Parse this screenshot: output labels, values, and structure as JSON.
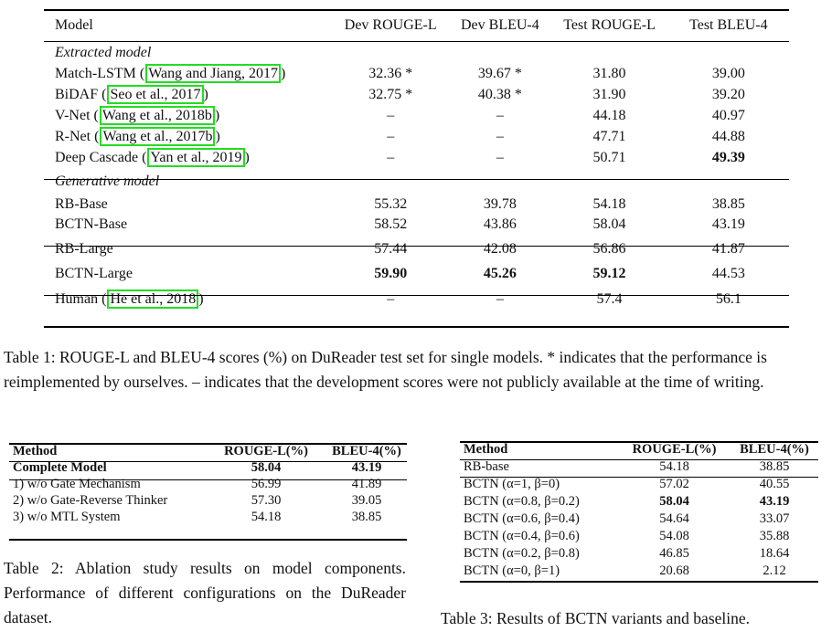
{
  "table1": {
    "headers": [
      "Model",
      "Dev ROUGE-L",
      "Dev BLEU-4",
      "Test ROUGE-L",
      "Test BLEU-4"
    ],
    "section_extracted": "Extracted model",
    "extracted_rows": [
      {
        "model": "Match-LSTM (",
        "cite": "Wang and Jiang, 2017",
        "close": ")",
        "dev_rouge": "32.36 *",
        "dev_bleu": "39.67 *",
        "test_rouge": "31.80",
        "test_bleu": "39.00"
      },
      {
        "model": "BiDAF (",
        "cite": "Seo et al., 2017",
        "close": ")",
        "dev_rouge": "32.75 *",
        "dev_bleu": "40.38 *",
        "test_rouge": "31.90",
        "test_bleu": "39.20"
      },
      {
        "model": "V-Net (",
        "cite": "Wang et al., 2018b",
        "close": ")",
        "dev_rouge": "–",
        "dev_bleu": "–",
        "test_rouge": "44.18",
        "test_bleu": "40.97"
      },
      {
        "model": "R-Net (",
        "cite": "Wang et al., 2017b",
        "close": ")",
        "dev_rouge": "–",
        "dev_bleu": "–",
        "test_rouge": "47.71",
        "test_bleu": "44.88"
      },
      {
        "model": "Deep Cascade (",
        "cite": "Yan et al., 2019",
        "close": ")",
        "dev_rouge": "–",
        "dev_bleu": "–",
        "test_rouge": "50.71",
        "test_bleu": "49.39"
      }
    ],
    "section_generative": "Generative model",
    "generative_rows": [
      {
        "model": "RB-Base",
        "dev_rouge": "55.32",
        "dev_bleu": "39.78",
        "test_rouge": "54.18",
        "test_bleu": "38.85"
      },
      {
        "model": "BCTN-Base",
        "dev_rouge": "58.52",
        "dev_bleu": "43.86",
        "test_rouge": "58.04",
        "test_bleu": "43.19"
      }
    ],
    "large_rows": [
      {
        "model": "RB-Large",
        "dev_rouge": "57.44",
        "dev_bleu": "42.08",
        "test_rouge": "56.86",
        "test_bleu": "41.87"
      },
      {
        "model": "BCTN-Large",
        "dev_rouge": "59.90",
        "dev_bleu": "45.26",
        "test_rouge": "59.12",
        "test_bleu": "44.53"
      }
    ],
    "human_row": {
      "model": "Human (",
      "cite": "He et al., 2018",
      "close": ")",
      "dev_rouge": "–",
      "dev_bleu": "–",
      "test_rouge": "57.4",
      "test_bleu": "56.1"
    },
    "caption": "Table 1: ROUGE-L and BLEU-4 scores (%) on DuReader test set for single models. * indicates that the performance is reimplemented by ourselves. – indicates that the development scores were not publicly available at the time of writing."
  },
  "table2": {
    "headers": [
      "Method",
      "ROUGE-L(%)",
      "BLEU-4(%)"
    ],
    "complete": {
      "method": "Complete Model",
      "rouge": "58.04",
      "bleu": "43.19"
    },
    "rows": [
      {
        "method": "1) w/o Gate Mechanism",
        "rouge": "56.99",
        "bleu": "41.89"
      },
      {
        "method": "2) w/o Gate-Reverse Thinker",
        "rouge": "57.30",
        "bleu": "39.05"
      },
      {
        "method": "3) w/o MTL System",
        "rouge": "54.18",
        "bleu": "38.85"
      }
    ],
    "caption": "Table 2: Ablation study results on model components. Performance of different configurations on the DuReader dataset."
  },
  "table3": {
    "headers": [
      "Method",
      "ROUGE-L(%)",
      "BLEU-4(%)"
    ],
    "baseline": {
      "method": "RB-base",
      "rouge": "54.18",
      "bleu": "38.85"
    },
    "rows": [
      {
        "method": "BCTN (α=1, β=0)",
        "rouge": "57.02",
        "bleu": "40.55"
      },
      {
        "method": "BCTN (α=0.8, β=0.2)",
        "rouge": "58.04",
        "bleu": "43.19"
      },
      {
        "method": "BCTN (α=0.6, β=0.4)",
        "rouge": "54.64",
        "bleu": "33.07"
      },
      {
        "method": "BCTN (α=0.4, β=0.6)",
        "rouge": "54.08",
        "bleu": "35.88"
      },
      {
        "method": "BCTN (α=0.2, β=0.8)",
        "rouge": "46.85",
        "bleu": "18.64"
      },
      {
        "method": "BCTN (α=0, β=1)",
        "rouge": "20.68",
        "bleu": "2.12"
      }
    ],
    "caption": "Table 3: Results of BCTN variants and baseline."
  },
  "colors": {
    "citation_box": "#22dd22"
  }
}
